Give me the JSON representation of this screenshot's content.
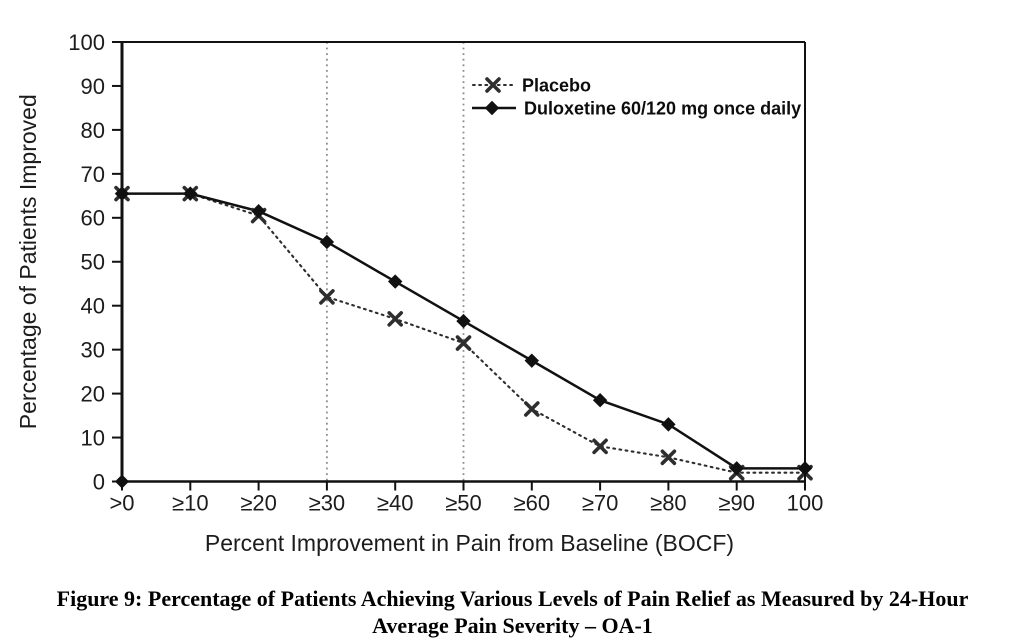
{
  "colors": {
    "background": "#ffffff",
    "axis": "#111111",
    "series_line": "#111111",
    "placebo_dotted": "#2e2e2e",
    "reference_line": "#8c8c8c",
    "text": "#1c1c1c"
  },
  "chart_data": {
    "type": "line",
    "title": "",
    "xlabel": "Percent Improvement in Pain from Baseline (BOCF)",
    "ylabel": "Percentage of Patients Improved",
    "categories": [
      ">0",
      "≥10",
      "≥20",
      "≥30",
      "≥40",
      "≥50",
      "≥60",
      "≥70",
      "≥80",
      "≥90",
      "100"
    ],
    "yticks": [
      0,
      10,
      20,
      30,
      40,
      50,
      60,
      70,
      80,
      90,
      100
    ],
    "ylim": [
      0,
      100
    ],
    "grid": false,
    "reference_line_categories": [
      "≥30",
      "≥50"
    ],
    "reference_line_style": "vertical gray dotted",
    "legend_position": "inside top-center",
    "origin_marker": "filled diamond at axis origin",
    "series": [
      {
        "name": "Placebo",
        "marker": "x",
        "line_style": "dotted",
        "values": [
          65.5,
          65.5,
          60.5,
          42,
          37,
          31.5,
          16.5,
          8,
          5.5,
          2,
          2
        ]
      },
      {
        "name": "Duloxetine 60/120 mg once daily",
        "marker": "diamond",
        "line_style": "solid",
        "values": [
          65.5,
          65.5,
          61.5,
          54.5,
          45.5,
          36.5,
          27.5,
          18.5,
          13,
          3,
          3
        ]
      }
    ]
  },
  "figure": {
    "caption_line1": "Figure 9: Percentage of Patients Achieving Various Levels of Pain Relief as Measured by 24-Hour",
    "caption_line2": "Average Pain Severity – OA-1"
  }
}
